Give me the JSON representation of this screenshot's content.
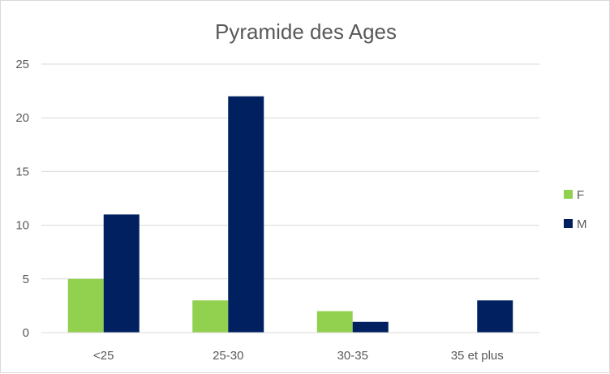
{
  "chart_data": {
    "type": "bar",
    "title": "Pyramide des Ages",
    "categories": [
      "<25",
      "25-30",
      "30-35",
      "35 et plus"
    ],
    "series": [
      {
        "name": "F",
        "values": [
          5,
          3,
          2,
          0
        ],
        "color": "#92D050"
      },
      {
        "name": "M",
        "values": [
          11,
          22,
          1,
          3
        ],
        "color": "#002060"
      }
    ],
    "ylim": [
      0,
      25
    ],
    "yticks": [
      0,
      5,
      10,
      15,
      20,
      25
    ],
    "grid": true,
    "legend_position": "right",
    "xlabel": "",
    "ylabel": ""
  }
}
